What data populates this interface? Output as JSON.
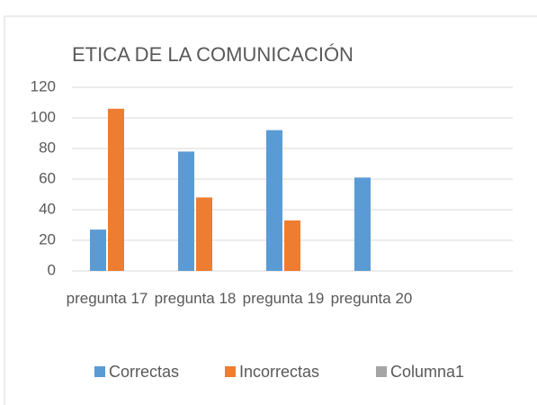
{
  "chart_data": {
    "type": "bar",
    "title": "ETICA DE LA COMUNICACIÓN",
    "categories": [
      "pregunta 17",
      "pregunta 18",
      "pregunta 19",
      "pregunta 20",
      null
    ],
    "series": [
      {
        "name": "Correctas",
        "color": "#5b9bd5",
        "values": [
          27,
          78,
          92,
          61,
          null
        ]
      },
      {
        "name": "Incorrectas",
        "color": "#ed7d31",
        "values": [
          106,
          48,
          33,
          null,
          null
        ]
      },
      {
        "name": "Columna1",
        "color": "#a5a5a5",
        "values": [
          null,
          null,
          null,
          null,
          null
        ]
      }
    ],
    "ylim": [
      0,
      120
    ],
    "yticks": [
      0,
      20,
      40,
      60,
      80,
      100,
      120
    ],
    "grid": true,
    "legend": "bottom"
  }
}
